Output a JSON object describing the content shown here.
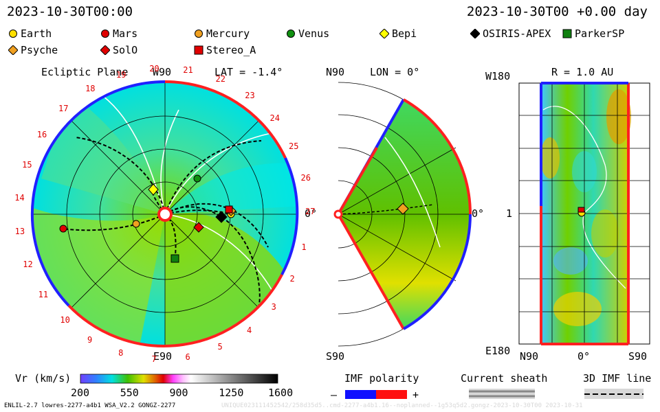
{
  "header": {
    "left_time": "2023-10-30T00:00",
    "right_time": "2023-10-30T00 +0.00 day"
  },
  "legend": [
    {
      "name": "Earth",
      "color": "#ffe000",
      "shape": "circle"
    },
    {
      "name": "Mars",
      "color": "#e00000",
      "shape": "circle"
    },
    {
      "name": "Mercury",
      "color": "#f0a020",
      "shape": "circle"
    },
    {
      "name": "Venus",
      "color": "#109010",
      "shape": "circle"
    },
    {
      "name": "Bepi",
      "color": "#ffff00",
      "shape": "diamond"
    },
    {
      "name": "OSIRIS-APEX",
      "color": "#000000",
      "shape": "diamond"
    },
    {
      "name": "ParkerSP",
      "color": "#108010",
      "shape": "square"
    },
    {
      "name": "Psyche",
      "color": "#f0a020",
      "shape": "diamond"
    },
    {
      "name": "SolO",
      "color": "#e00000",
      "shape": "diamond"
    },
    {
      "name": "Stereo_A",
      "color": "#e00000",
      "shape": "square"
    }
  ],
  "ecliptic": {
    "title": "Ecliptic Plane",
    "lat": "LAT = -1.4°",
    "w90": "W90",
    "e90": "E90",
    "zero": "0°",
    "carrington": [
      "1",
      "2",
      "3",
      "4",
      "5",
      "6",
      "7",
      "8",
      "9",
      "10",
      "11",
      "12",
      "13",
      "14",
      "15",
      "16",
      "17",
      "18",
      "19",
      "20",
      "21",
      "22",
      "23",
      "24",
      "25",
      "26",
      "27"
    ]
  },
  "meridional": {
    "n90": "N90",
    "s90": "S90",
    "lon": "LON = 0°",
    "zero": "0°"
  },
  "radial": {
    "w180": "W180",
    "e180": "E180",
    "title": "R = 1.0 AU",
    "mid": "1",
    "n90": "N90",
    "s90": "S90",
    "zero": "0°"
  },
  "colorbar": {
    "label": "Vr (km/s)",
    "ticks": [
      "200",
      "550",
      "900",
      "1250",
      "1600"
    ]
  },
  "imf": {
    "label": "IMF polarity",
    "minus": "–",
    "plus": "+"
  },
  "sheath": {
    "label": "Current sheath"
  },
  "imf_line": {
    "label": "3D IMF line"
  },
  "footer": {
    "left": "ENLIL-2.7 lowres-2277-a4b1 WSA_V2.2 GONGZ-2277",
    "right": "UNIQUE023111452542/258d35d5..cmd-2277-a4b1.16--noplanned--1g53q5d2.gongz-2023-10-30T00  2023-10-31"
  },
  "chart_data": [
    {
      "type": "heatmap",
      "title": "Ecliptic Plane",
      "quantity": "Vr (km/s)",
      "lat_deg": -1.4,
      "angular_labels": [
        "0°",
        "W90",
        "E90"
      ],
      "carrington_markers": [
        "1",
        "2",
        "3",
        "4",
        "5",
        "6",
        "7",
        "8",
        "9",
        "10",
        "11",
        "12",
        "13",
        "14",
        "15",
        "16",
        "17",
        "18",
        "19",
        "20",
        "21",
        "22",
        "23",
        "24",
        "25",
        "26",
        "27"
      ]
    },
    {
      "type": "heatmap",
      "title": "LON = 0°",
      "quantity": "Vr (km/s)",
      "axis_labels": [
        "N90",
        "S90",
        "0°"
      ]
    },
    {
      "type": "heatmap",
      "title": "R = 1.0 AU",
      "quantity": "Vr (km/s)",
      "xlabels": [
        "N90",
        "0°",
        "S90"
      ],
      "ylabels": [
        "W180",
        "1",
        "E180"
      ]
    },
    {
      "type": "colorbar",
      "label": "Vr (km/s)",
      "range": [
        200,
        1600
      ],
      "ticks": [
        200,
        550,
        900,
        1250,
        1600
      ]
    }
  ]
}
